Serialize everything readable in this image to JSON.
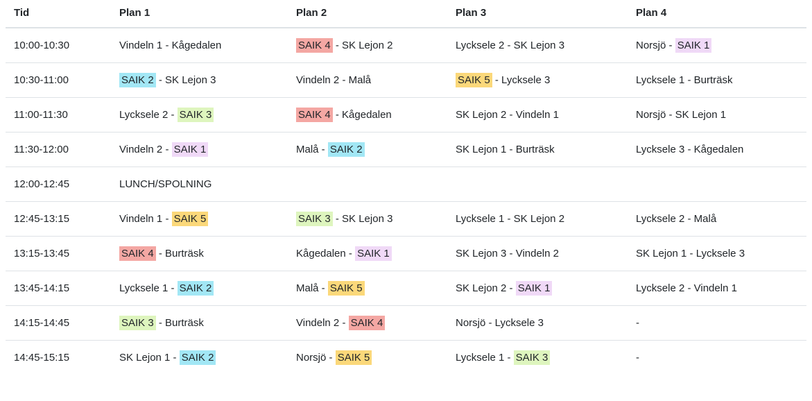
{
  "colors": {
    "text": "#212529",
    "border": "#dee2e6",
    "background": "#ffffff"
  },
  "highlight_colors": {
    "SAIK 1": "#f0d9f7",
    "SAIK 2": "#a2e7f5",
    "SAIK 3": "#def5be",
    "SAIK 4": "#f4a7a3",
    "SAIK 5": "#fbd87a"
  },
  "table": {
    "columns": [
      "Tid",
      "Plan 1",
      "Plan 2",
      "Plan 3",
      "Plan 4"
    ],
    "rows": [
      {
        "time": "10:00-10:30",
        "plans": [
          [
            {
              "text": "Vindeln 1 - Kågedalen"
            }
          ],
          [
            {
              "text": "SAIK 4",
              "team": "SAIK 4"
            },
            {
              "text": " - SK Lejon 2"
            }
          ],
          [
            {
              "text": "Lycksele 2 - SK Lejon 3"
            }
          ],
          [
            {
              "text": "Norsjö - "
            },
            {
              "text": "SAIK 1",
              "team": "SAIK 1"
            }
          ]
        ]
      },
      {
        "time": "10:30-11:00",
        "plans": [
          [
            {
              "text": "SAIK 2",
              "team": "SAIK 2"
            },
            {
              "text": " - SK Lejon 3"
            }
          ],
          [
            {
              "text": "Vindeln 2 - Malå"
            }
          ],
          [
            {
              "text": "SAIK 5",
              "team": "SAIK 5"
            },
            {
              "text": " - Lycksele 3"
            }
          ],
          [
            {
              "text": "Lycksele 1 - Burträsk"
            }
          ]
        ]
      },
      {
        "time": "11:00-11:30",
        "plans": [
          [
            {
              "text": "Lycksele 2 - "
            },
            {
              "text": "SAIK 3",
              "team": "SAIK 3"
            }
          ],
          [
            {
              "text": "SAIK 4",
              "team": "SAIK 4"
            },
            {
              "text": " - Kågedalen"
            }
          ],
          [
            {
              "text": "SK Lejon 2 - Vindeln 1"
            }
          ],
          [
            {
              "text": "Norsjö - SK Lejon 1"
            }
          ]
        ]
      },
      {
        "time": "11:30-12:00",
        "plans": [
          [
            {
              "text": "Vindeln 2 - "
            },
            {
              "text": "SAIK 1",
              "team": "SAIK 1"
            }
          ],
          [
            {
              "text": "Malå - "
            },
            {
              "text": "SAIK 2",
              "team": "SAIK 2"
            }
          ],
          [
            {
              "text": "SK Lejon 1 - Burträsk"
            }
          ],
          [
            {
              "text": "Lycksele 3 - Kågedalen"
            }
          ]
        ]
      },
      {
        "time": "12:00-12:45",
        "plans": [
          [
            {
              "text": "LUNCH/SPOLNING"
            }
          ],
          [],
          [],
          []
        ]
      },
      {
        "time": "12:45-13:15",
        "plans": [
          [
            {
              "text": "Vindeln 1 - "
            },
            {
              "text": "SAIK 5",
              "team": "SAIK 5"
            }
          ],
          [
            {
              "text": "SAIK 3",
              "team": "SAIK 3"
            },
            {
              "text": " - SK Lejon 3"
            }
          ],
          [
            {
              "text": "Lycksele 1 - SK Lejon 2"
            }
          ],
          [
            {
              "text": "Lycksele 2 - Malå"
            }
          ]
        ]
      },
      {
        "time": "13:15-13:45",
        "plans": [
          [
            {
              "text": "SAIK 4",
              "team": "SAIK 4"
            },
            {
              "text": " - Burträsk"
            }
          ],
          [
            {
              "text": "Kågedalen - "
            },
            {
              "text": "SAIK 1",
              "team": "SAIK 1"
            }
          ],
          [
            {
              "text": "SK Lejon 3 - Vindeln 2"
            }
          ],
          [
            {
              "text": "SK Lejon 1 - Lycksele 3"
            }
          ]
        ]
      },
      {
        "time": "13:45-14:15",
        "plans": [
          [
            {
              "text": "Lycksele 1 - "
            },
            {
              "text": "SAIK 2",
              "team": "SAIK 2"
            }
          ],
          [
            {
              "text": "Malå - "
            },
            {
              "text": "SAIK 5",
              "team": "SAIK 5"
            }
          ],
          [
            {
              "text": "SK Lejon 2 - "
            },
            {
              "text": "SAIK 1",
              "team": "SAIK 1"
            }
          ],
          [
            {
              "text": "Lycksele 2 - Vindeln 1"
            }
          ]
        ]
      },
      {
        "time": "14:15-14:45",
        "plans": [
          [
            {
              "text": "SAIK 3",
              "team": "SAIK 3"
            },
            {
              "text": " - Burträsk"
            }
          ],
          [
            {
              "text": "Vindeln 2 - "
            },
            {
              "text": "SAIK 4",
              "team": "SAIK 4"
            }
          ],
          [
            {
              "text": "Norsjö - Lycksele 3"
            }
          ],
          [
            {
              "text": "-"
            }
          ]
        ]
      },
      {
        "time": "14:45-15:15",
        "plans": [
          [
            {
              "text": "SK Lejon 1 - "
            },
            {
              "text": "SAIK 2",
              "team": "SAIK 2"
            }
          ],
          [
            {
              "text": "Norsjö - "
            },
            {
              "text": "SAIK 5",
              "team": "SAIK 5"
            }
          ],
          [
            {
              "text": "Lycksele 1 - "
            },
            {
              "text": "SAIK 3",
              "team": "SAIK 3"
            }
          ],
          [
            {
              "text": "-"
            }
          ]
        ]
      }
    ]
  }
}
